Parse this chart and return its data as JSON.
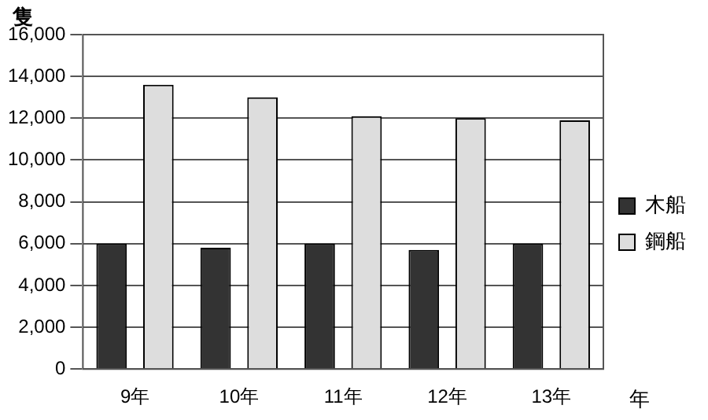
{
  "chart_data": {
    "type": "bar",
    "ylabel": "隻",
    "xlabel": "年",
    "categories": [
      "9年",
      "10年",
      "11年",
      "12年",
      "13年"
    ],
    "series": [
      {
        "name": "木船",
        "color": "#333333",
        "values": [
          6000,
          5800,
          6000,
          5700,
          6000
        ]
      },
      {
        "name": "鋼船",
        "color": "#dddddd",
        "values": [
          13600,
          13000,
          12100,
          12000,
          11900
        ]
      }
    ],
    "ylim": [
      0,
      16000
    ],
    "yticks": [
      0,
      {
        "value": 2000,
        "label": "2,000"
      },
      {
        "value": 4000,
        "label": "4,000"
      },
      {
        "value": 6000,
        "label": "6,000"
      },
      {
        "value": 8000,
        "label": "8,000"
      },
      {
        "value": 10000,
        "label": "10,000"
      },
      {
        "value": 12000,
        "label": "12,000"
      },
      {
        "value": 14000,
        "label": "14,000"
      },
      {
        "value": 16000,
        "label": "16,000"
      }
    ],
    "grid": "y",
    "legend": "right"
  }
}
